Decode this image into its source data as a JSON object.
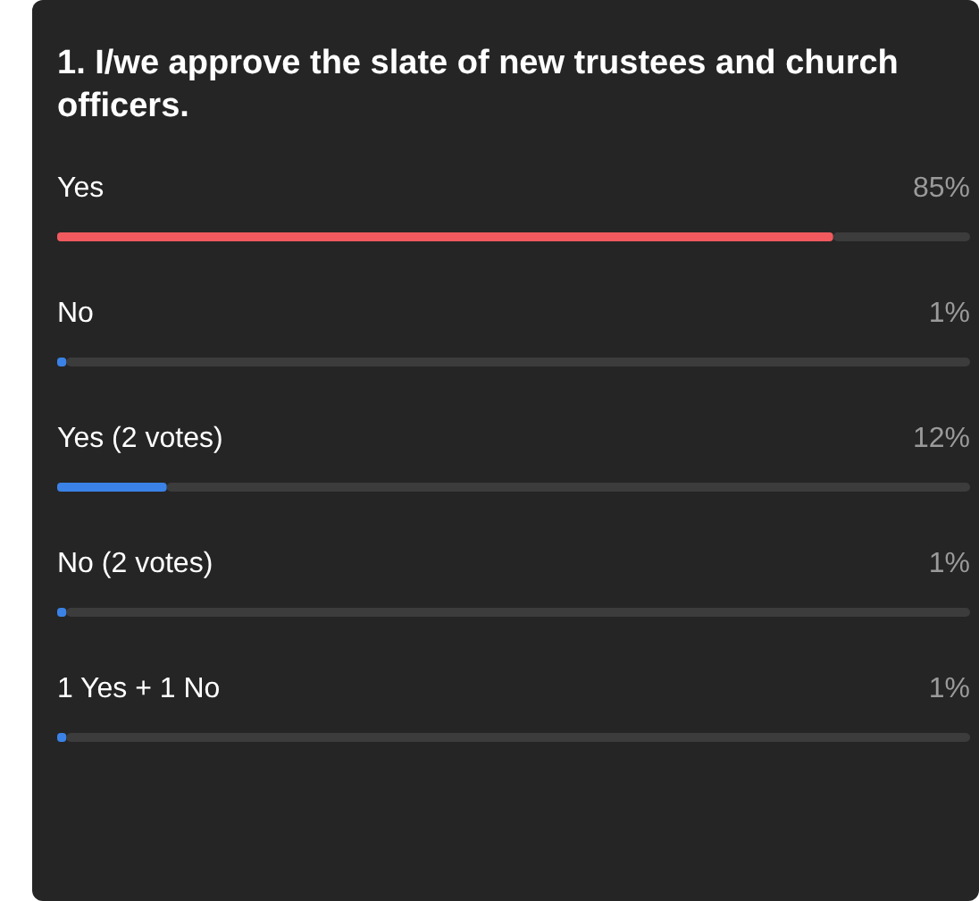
{
  "chart_data": {
    "type": "bar",
    "orientation": "horizontal",
    "title": "1. I/we approve the slate of new trustees and church officers.",
    "categories": [
      "Yes",
      "No",
      "Yes (2 votes)",
      "No (2 votes)",
      "1 Yes + 1 No"
    ],
    "values": [
      85,
      1,
      12,
      1,
      1
    ],
    "value_labels": [
      "85%",
      "1%",
      "12%",
      "1%",
      "1%"
    ],
    "colors": [
      "#f05a5e",
      "#3b82e6",
      "#3b82e6",
      "#3b82e6",
      "#3b82e6"
    ],
    "xlim": [
      0,
      100
    ],
    "tick_labels": false
  }
}
